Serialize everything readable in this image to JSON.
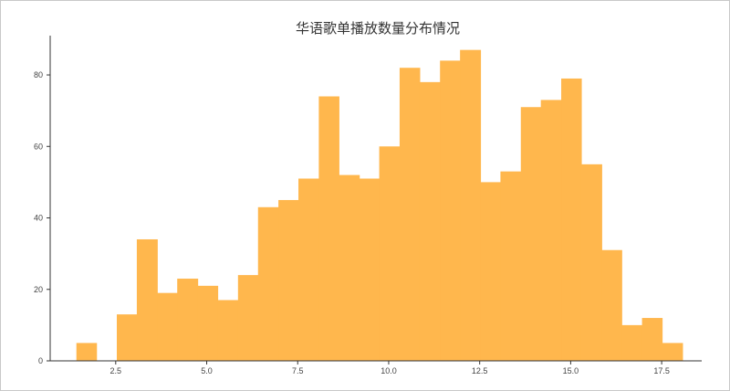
{
  "chart_data": {
    "type": "bar",
    "title": "华语歌单播放数量分布情况",
    "xlabel": "",
    "ylabel": "",
    "bar_color": "#FFB74D",
    "grid": false,
    "legend": "none",
    "xlim": [
      0.7,
      18.6
    ],
    "ylim": [
      0,
      91
    ],
    "x_ticks": [
      "2.5",
      "5.0",
      "7.5",
      "10.0",
      "12.5",
      "15.0",
      "17.5"
    ],
    "y_ticks": [
      "0",
      "20",
      "40",
      "60",
      "80"
    ],
    "bins": [
      {
        "x0": 1.42,
        "x1": 1.97,
        "count": 5
      },
      {
        "x0": 1.97,
        "x1": 2.53,
        "count": 0
      },
      {
        "x0": 2.53,
        "x1": 3.08,
        "count": 13
      },
      {
        "x0": 3.08,
        "x1": 3.64,
        "count": 34
      },
      {
        "x0": 3.64,
        "x1": 4.19,
        "count": 19
      },
      {
        "x0": 4.19,
        "x1": 4.75,
        "count": 23
      },
      {
        "x0": 4.75,
        "x1": 5.3,
        "count": 21
      },
      {
        "x0": 5.3,
        "x1": 5.86,
        "count": 17
      },
      {
        "x0": 5.86,
        "x1": 6.41,
        "count": 24
      },
      {
        "x0": 6.41,
        "x1": 6.97,
        "count": 43
      },
      {
        "x0": 6.97,
        "x1": 7.52,
        "count": 45
      },
      {
        "x0": 7.52,
        "x1": 8.08,
        "count": 51
      },
      {
        "x0": 8.08,
        "x1": 8.63,
        "count": 74
      },
      {
        "x0": 8.63,
        "x1": 9.19,
        "count": 52
      },
      {
        "x0": 9.19,
        "x1": 9.74,
        "count": 51
      },
      {
        "x0": 9.74,
        "x1": 10.3,
        "count": 60
      },
      {
        "x0": 10.3,
        "x1": 10.85,
        "count": 82
      },
      {
        "x0": 10.85,
        "x1": 11.41,
        "count": 78
      },
      {
        "x0": 11.41,
        "x1": 11.96,
        "count": 84
      },
      {
        "x0": 11.96,
        "x1": 12.52,
        "count": 87
      },
      {
        "x0": 12.52,
        "x1": 13.07,
        "count": 50
      },
      {
        "x0": 13.07,
        "x1": 13.63,
        "count": 53
      },
      {
        "x0": 13.63,
        "x1": 14.18,
        "count": 71
      },
      {
        "x0": 14.18,
        "x1": 14.74,
        "count": 73
      },
      {
        "x0": 14.74,
        "x1": 15.29,
        "count": 79
      },
      {
        "x0": 15.29,
        "x1": 15.85,
        "count": 55
      },
      {
        "x0": 15.85,
        "x1": 16.4,
        "count": 31
      },
      {
        "x0": 16.4,
        "x1": 16.96,
        "count": 10
      },
      {
        "x0": 16.96,
        "x1": 17.51,
        "count": 12
      },
      {
        "x0": 17.51,
        "x1": 18.07,
        "count": 5
      }
    ]
  }
}
